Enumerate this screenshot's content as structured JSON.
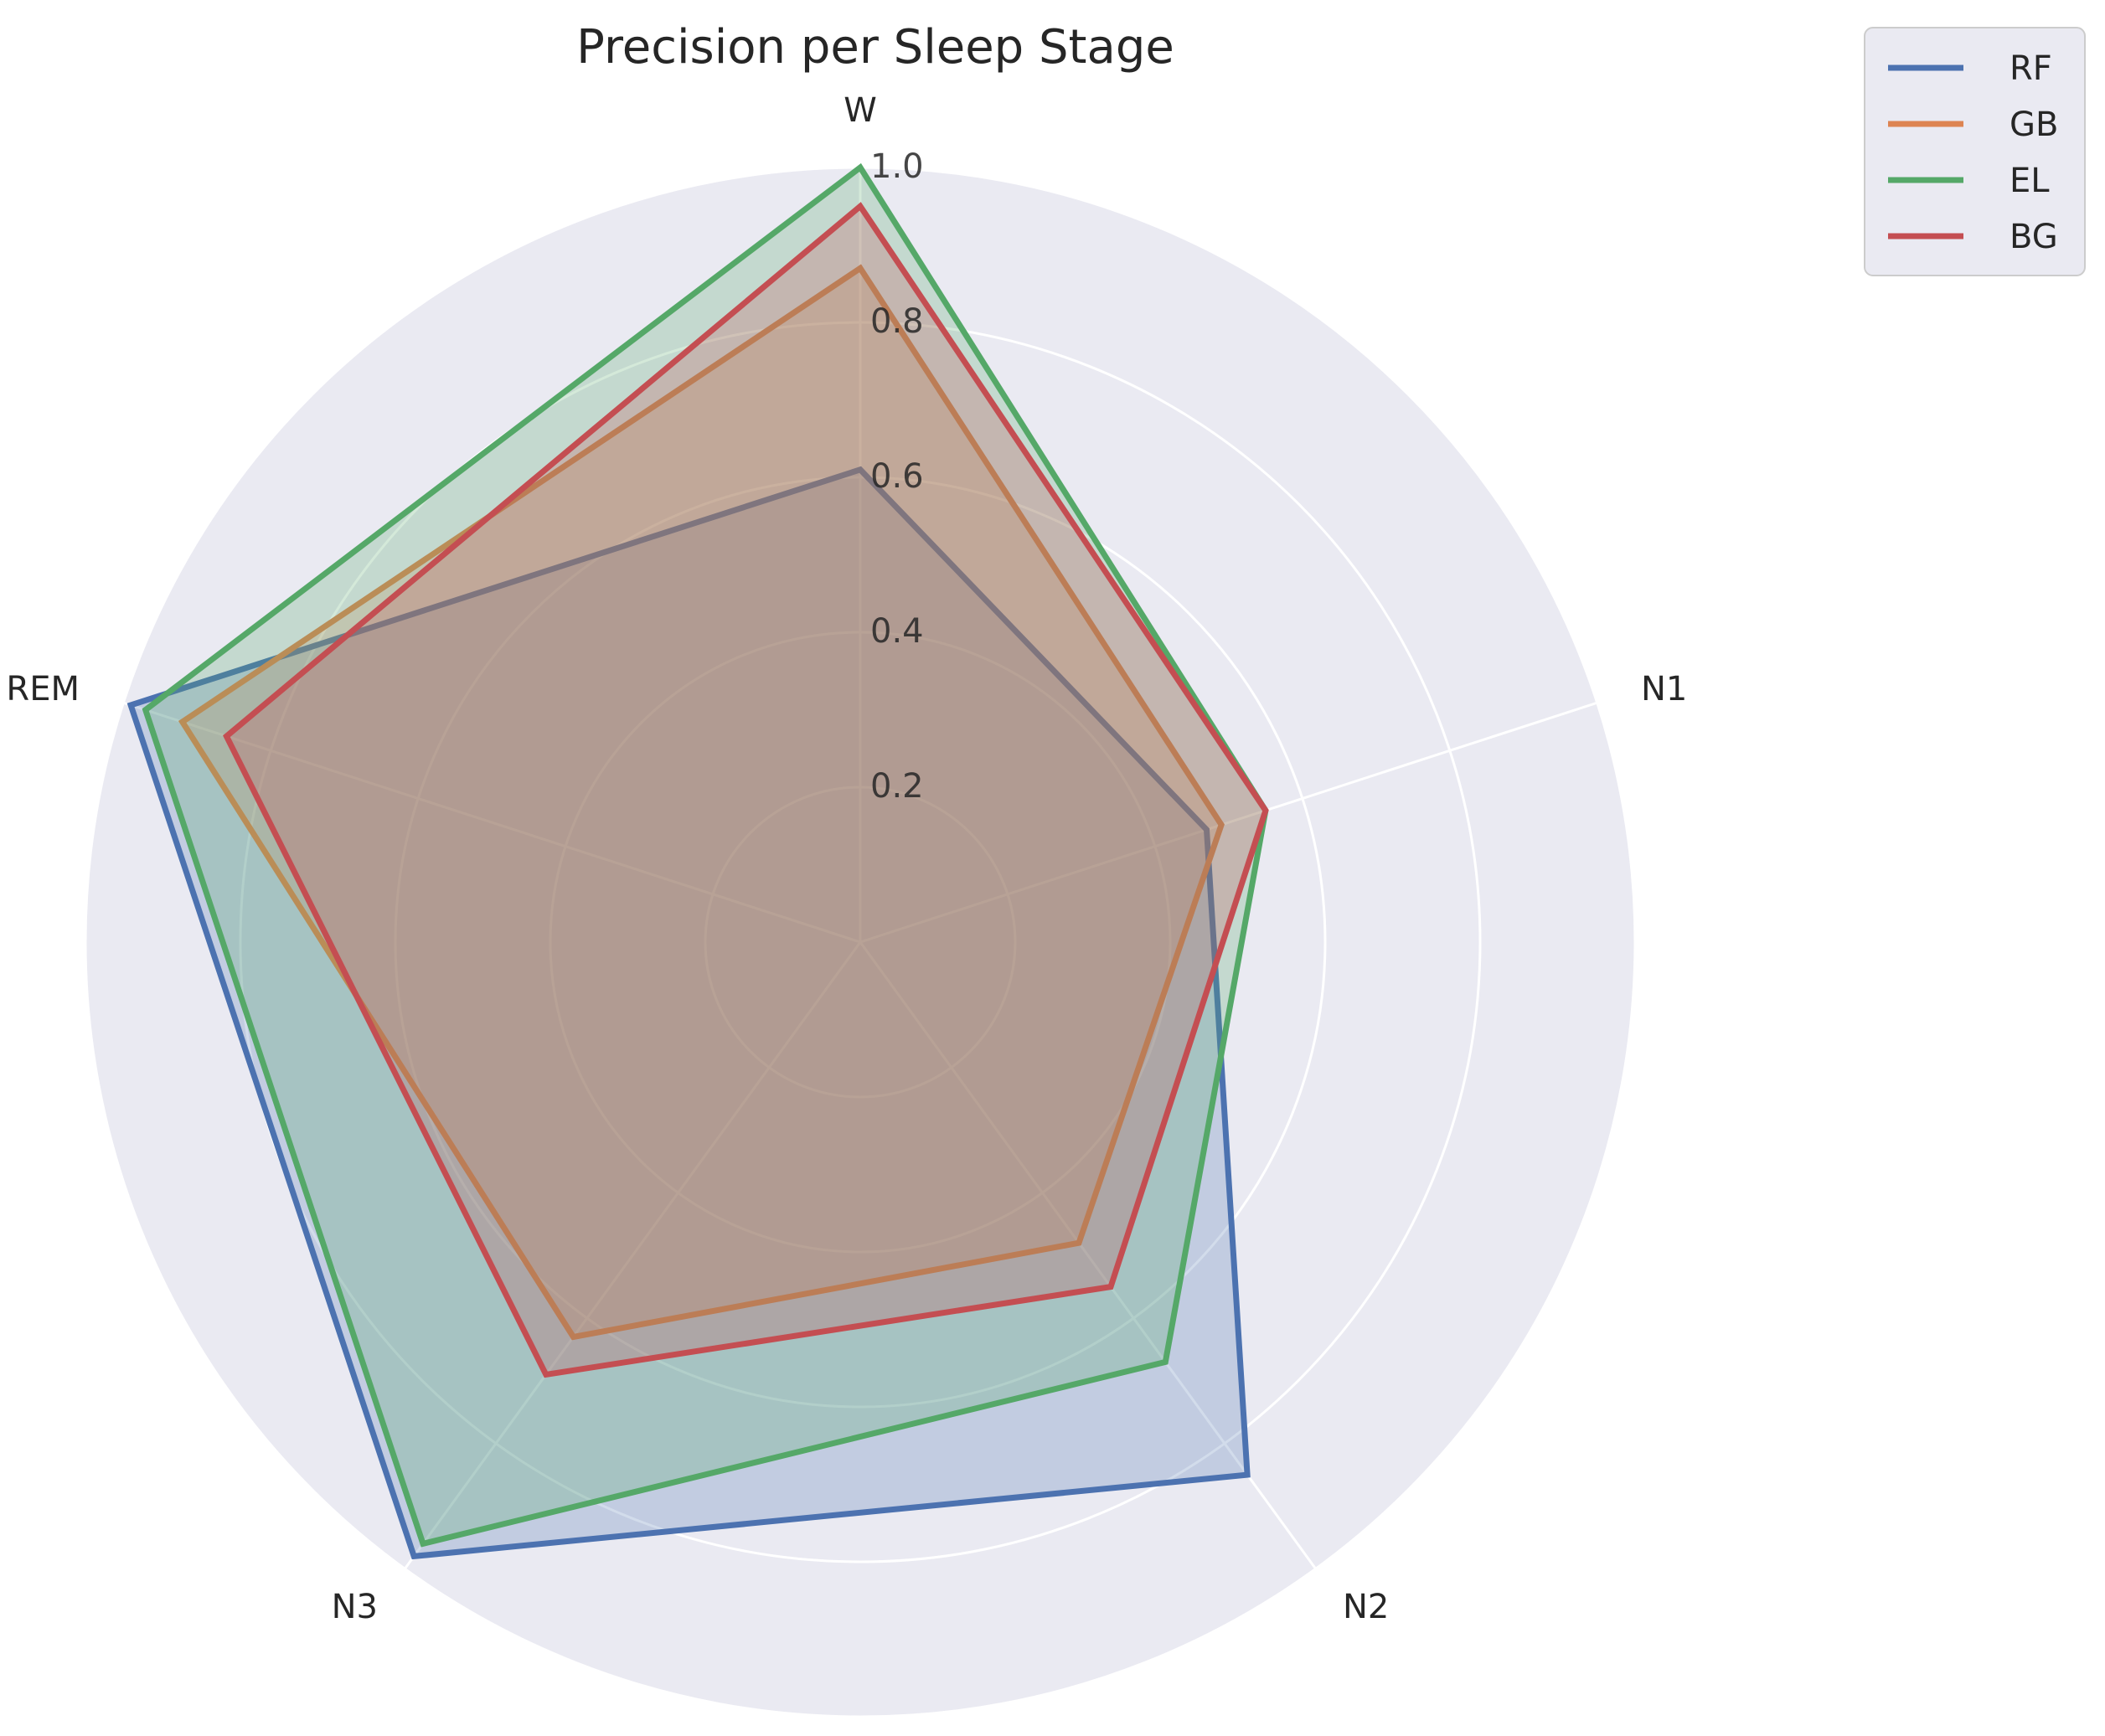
{
  "chart_data": {
    "type": "radar",
    "title": "Precision per Sleep Stage",
    "categories": [
      "W",
      "N1",
      "N2",
      "N3",
      "REM"
    ],
    "rlim": [
      0,
      1.0
    ],
    "rticks": [
      0.2,
      0.4,
      0.6,
      0.8,
      1.0
    ],
    "rtick_labels": [
      "0.2",
      "0.4",
      "0.6",
      "0.8",
      "1.0"
    ],
    "grid": true,
    "legend_position": "upper-right-outside",
    "series": [
      {
        "name": "RF",
        "color": "#4c72b0",
        "values": [
          0.61,
          0.47,
          0.85,
          0.98,
          0.99
        ]
      },
      {
        "name": "GB",
        "color": "#dd8452",
        "values": [
          0.87,
          0.49,
          0.48,
          0.63,
          0.92
        ]
      },
      {
        "name": "EL",
        "color": "#55a868",
        "values": [
          1.0,
          0.55,
          0.67,
          0.96,
          0.97
        ]
      },
      {
        "name": "BG",
        "color": "#c44e52",
        "values": [
          0.95,
          0.55,
          0.55,
          0.69,
          0.86
        ]
      }
    ]
  },
  "colors": {
    "plot_background": "#eaeaf2",
    "grid": "#ffffff",
    "text": "#262626"
  }
}
